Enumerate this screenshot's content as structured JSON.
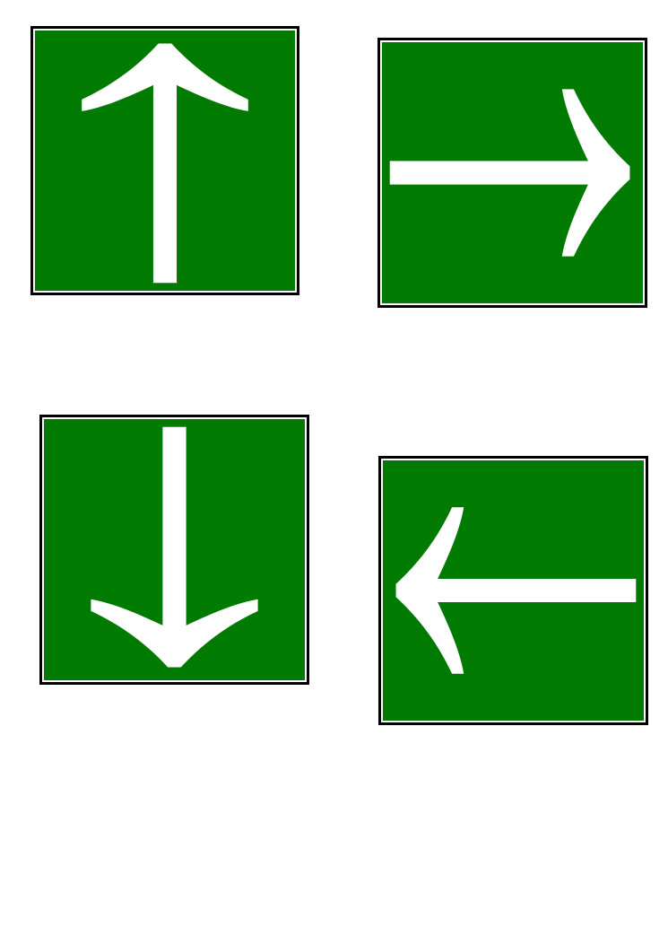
{
  "colors": {
    "sign_green": "#007a00",
    "arrow_white": "#ffffff",
    "border_black": "#000000",
    "page_background": "#ffffff"
  },
  "signs": [
    {
      "icon": "arrow-up-icon",
      "direction": "up"
    },
    {
      "icon": "arrow-right-icon",
      "direction": "right"
    },
    {
      "icon": "arrow-down-icon",
      "direction": "down"
    },
    {
      "icon": "arrow-left-icon",
      "direction": "left"
    }
  ]
}
